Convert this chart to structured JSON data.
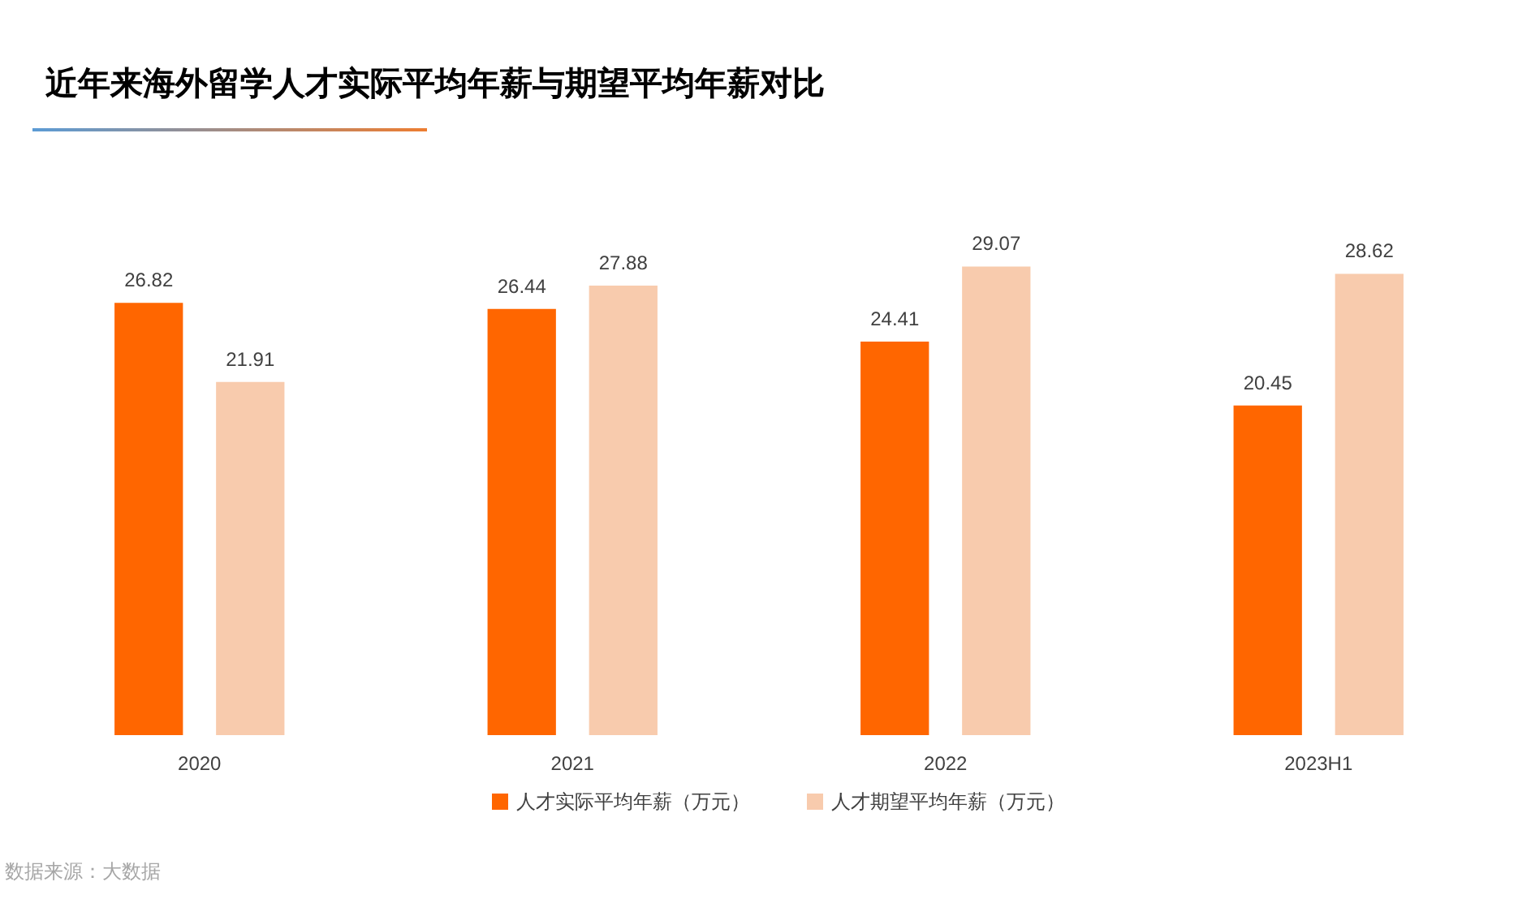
{
  "chart_data": {
    "type": "bar",
    "title": "近年来海外留学人才实际平均年薪与期望平均年薪对比",
    "categories": [
      "2020",
      "2021",
      "2022",
      "2023H1"
    ],
    "series": [
      {
        "name": "人才实际平均年薪（万元）",
        "color": "#ff6600",
        "values": [
          26.82,
          26.44,
          24.41,
          20.45
        ]
      },
      {
        "name": "人才期望平均年薪（万元）",
        "color": "#f8cbad",
        "values": [
          21.91,
          27.88,
          29.07,
          28.62
        ]
      }
    ],
    "data_labels": true,
    "legend": "bottom",
    "tick_labels": "x",
    "annotations": [
      "数据来源：大数据"
    ]
  }
}
